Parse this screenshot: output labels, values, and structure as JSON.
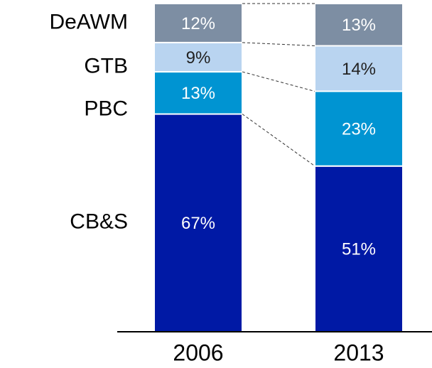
{
  "chart_data": {
    "type": "stacked_bar",
    "categories": [
      "2006",
      "2013"
    ],
    "series": [
      {
        "name": "CB&S",
        "color": "#0019a5",
        "values": [
          67,
          51
        ],
        "value_labels": [
          "67%",
          "51%"
        ]
      },
      {
        "name": "PBC",
        "color": "#0094d2",
        "values": [
          13,
          23
        ],
        "value_labels": [
          "13%",
          "23%"
        ]
      },
      {
        "name": "GTB",
        "color": "#b9d4f0",
        "values": [
          9,
          14
        ],
        "value_labels": [
          "9%",
          "14%"
        ]
      },
      {
        "name": "DeAWM",
        "color": "#7d8ea3",
        "values": [
          12,
          13
        ],
        "value_labels": [
          "12%",
          "13%"
        ]
      }
    ],
    "ylim": [
      0,
      101
    ]
  }
}
